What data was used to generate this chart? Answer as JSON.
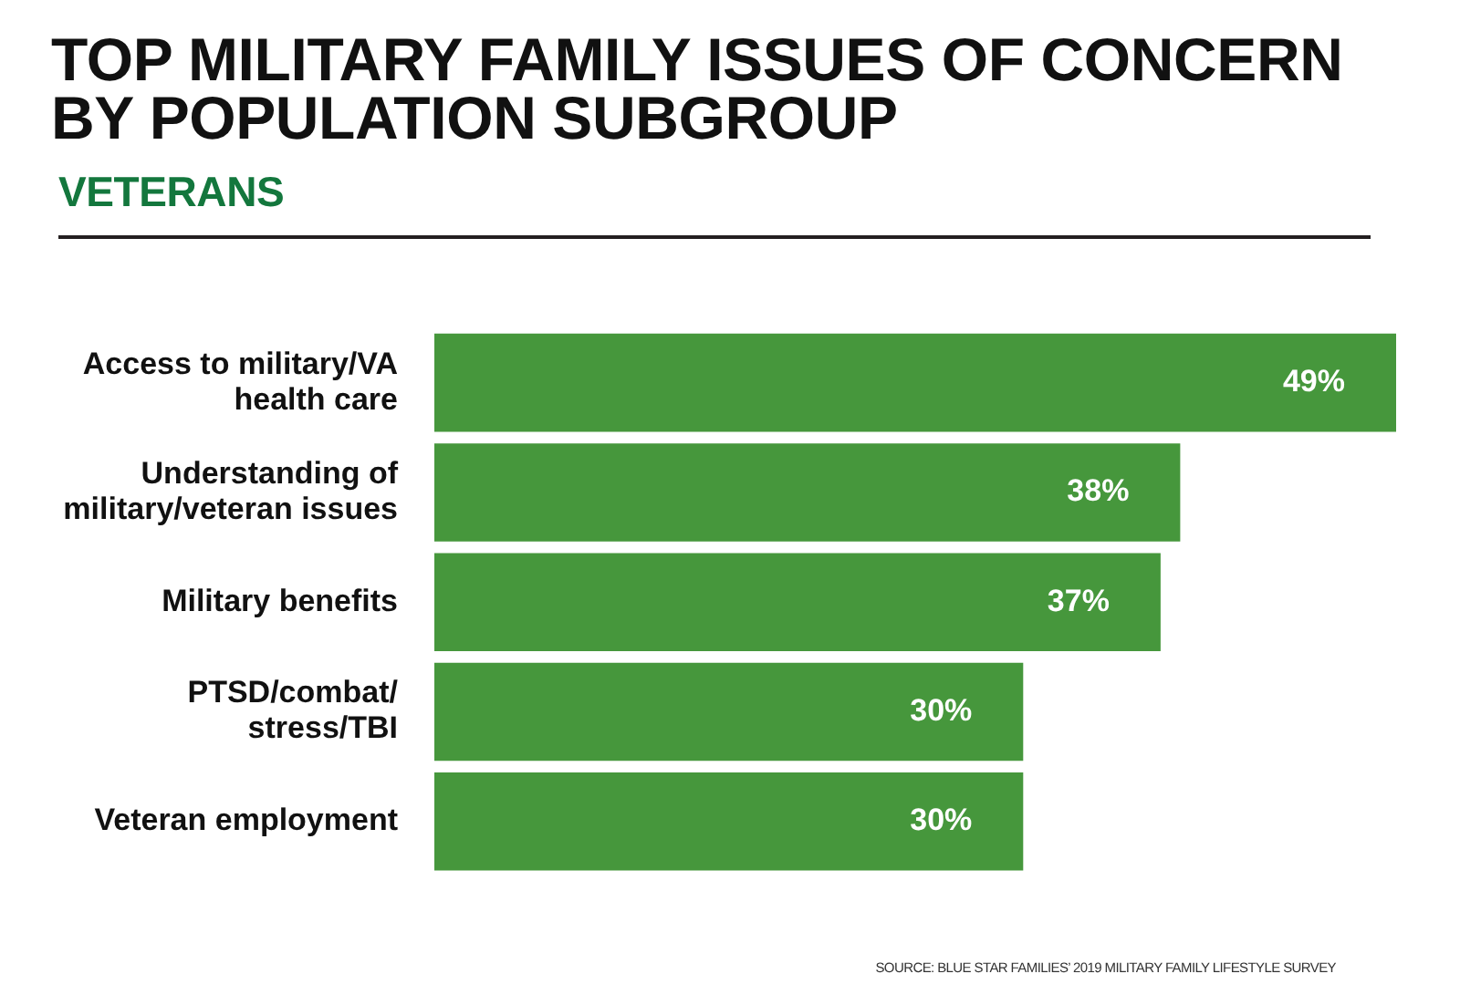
{
  "chart_data": {
    "type": "bar",
    "orientation": "horizontal",
    "title": "TOP MILITARY FAMILY ISSUES OF CONCERN BY POPULATION SUBGROUP",
    "subtitle": "VETERANS",
    "categories": [
      "Access to military/VA\nhealth care",
      "Understanding of\nmilitary/veteran issues",
      "Military benefits",
      "PTSD/combat/\nstress/TBI",
      "Veteran employment"
    ],
    "values": [
      49,
      38,
      37,
      30,
      30
    ],
    "color": "#46973c",
    "value_labels": [
      "49%",
      "38%",
      "37%",
      "30%",
      "30%"
    ],
    "annotations": [
      "SOURCE: BLUE STAR FAMILIES’ 2019 MILITARY FAMILY LIFESTYLE SURVEY"
    ]
  }
}
